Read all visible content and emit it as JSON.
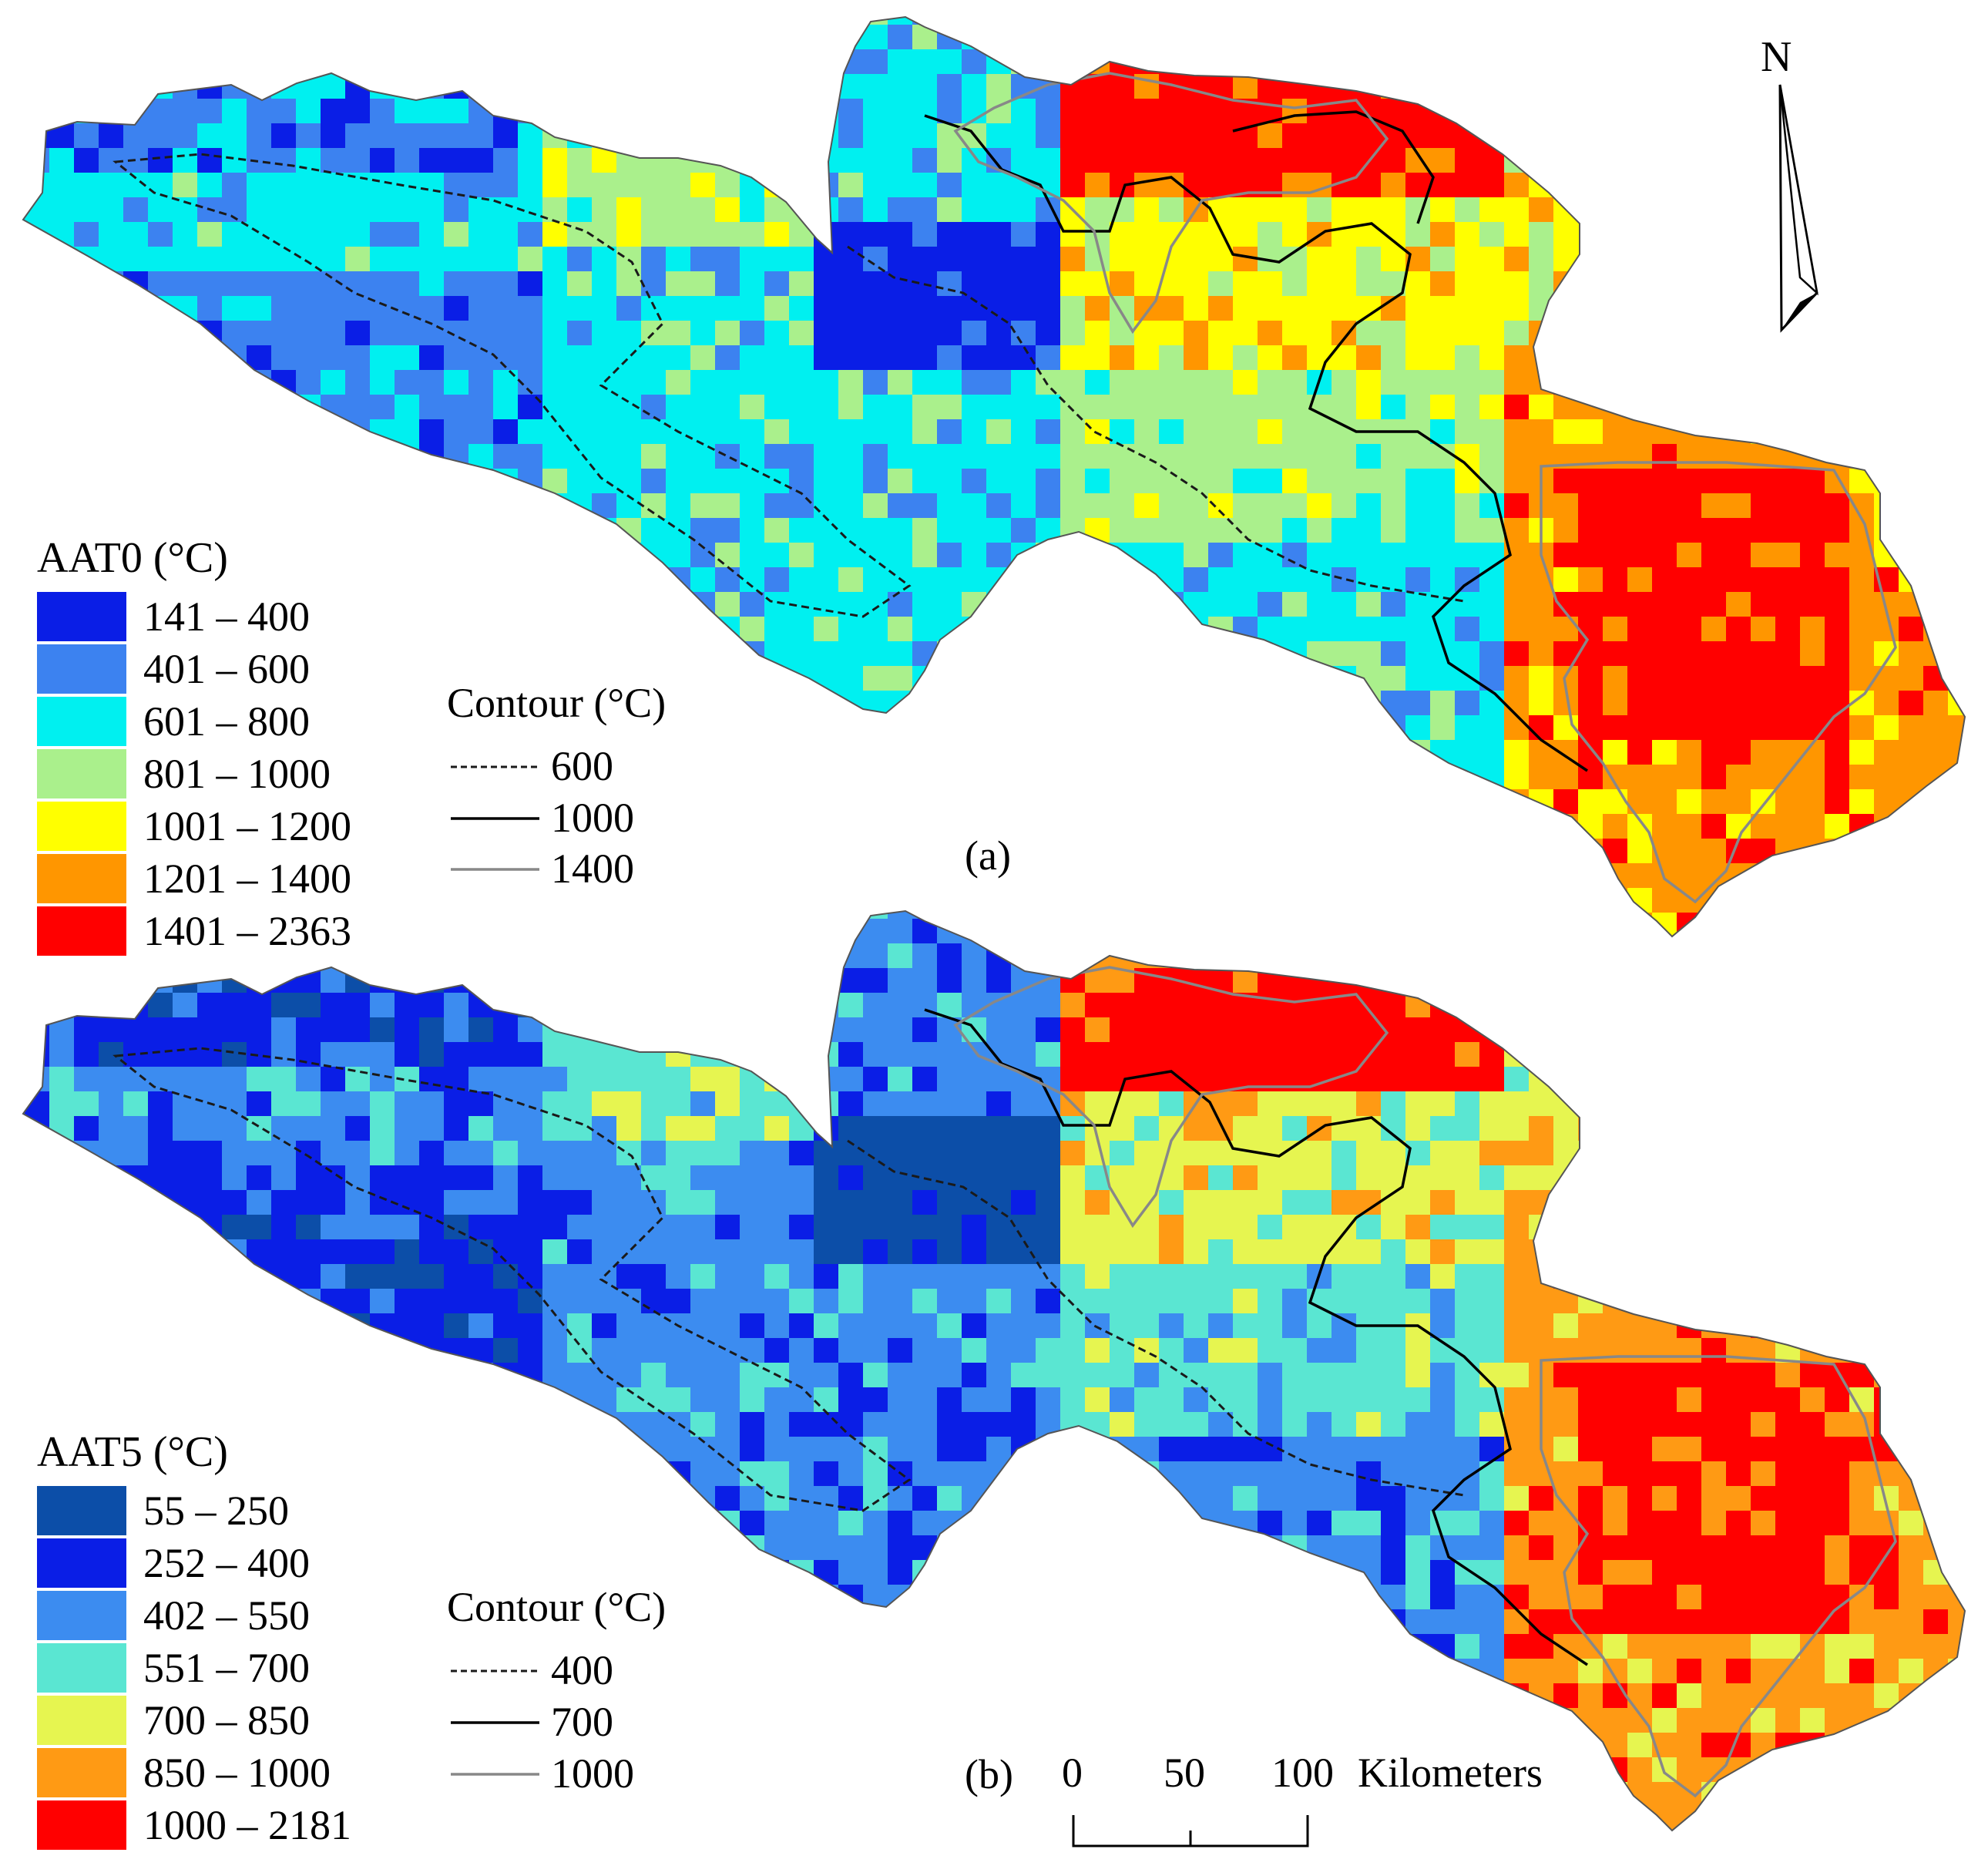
{
  "north_label": "N",
  "scale_bar": {
    "ticks": [
      "0",
      "50",
      "100"
    ],
    "unit": "Kilometers"
  },
  "panels": [
    {
      "id": "a",
      "panel_label": "(a)",
      "legend_title": "AAT0 (°C)",
      "classes": [
        {
          "label": "141 – 400",
          "color": "#0a1ee6"
        },
        {
          "label": "401 – 600",
          "color": "#3c82f0"
        },
        {
          "label": "601 – 800",
          "color": "#00f0f0"
        },
        {
          "label": "801 – 1000",
          "color": "#aaf08c"
        },
        {
          "label": "1001 – 1200",
          "color": "#ffff00"
        },
        {
          "label": "1201 – 1400",
          "color": "#ff9600"
        },
        {
          "label": "1401 – 2363",
          "color": "#ff0000"
        }
      ],
      "contour_title": "Contour (°C)",
      "contours": [
        {
          "label": "600",
          "style": "dashed",
          "color": "#1a1a1a"
        },
        {
          "label": "1000",
          "style": "solid",
          "color": "#000000"
        },
        {
          "label": "1400",
          "style": "solid",
          "color": "#888888"
        }
      ]
    },
    {
      "id": "b",
      "panel_label": "(b)",
      "legend_title": "AAT5 (°C)",
      "classes": [
        {
          "label": "55 – 250",
          "color": "#0c4ea8"
        },
        {
          "label": "252 – 400",
          "color": "#0a1ee6"
        },
        {
          "label": "402 – 550",
          "color": "#3c8cf0"
        },
        {
          "label": "551 – 700",
          "color": "#5ae6d2"
        },
        {
          "label": "700 – 850",
          "color": "#e6f550"
        },
        {
          "label": "850 – 1000",
          "color": "#ff9a14"
        },
        {
          "label": "1000 – 2181",
          "color": "#ff0000"
        }
      ],
      "contour_title": "Contour (°C)",
      "contours": [
        {
          "label": "400",
          "style": "dashed",
          "color": "#1a1a1a"
        },
        {
          "label": "700",
          "style": "solid",
          "color": "#000000"
        },
        {
          "label": "1000",
          "style": "solid",
          "color": "#888888"
        }
      ]
    }
  ]
}
